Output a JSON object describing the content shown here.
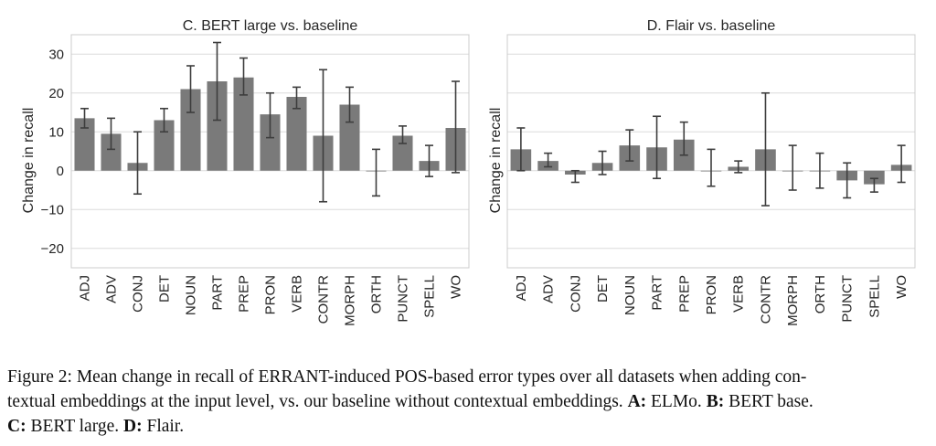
{
  "chart_data": [
    {
      "type": "bar",
      "title": "C. BERT large vs. baseline",
      "ylabel": "Change in recall",
      "ylim": [
        -25,
        35
      ],
      "yticks": [
        30,
        20,
        10,
        0,
        -10,
        -20
      ],
      "grid": true,
      "categories": [
        "ADJ",
        "ADV",
        "CONJ",
        "DET",
        "NOUN",
        "PART",
        "PREP",
        "PRON",
        "VERB",
        "CONTR",
        "MORPH",
        "ORTH",
        "PUNCT",
        "SPELL",
        "WO"
      ],
      "values": [
        13.5,
        9.5,
        2,
        13,
        21,
        23,
        24,
        14.5,
        19,
        9,
        17,
        0,
        9,
        2.5,
        11
      ],
      "error_low": [
        11,
        5.5,
        -6,
        10,
        15,
        13,
        19.5,
        8.5,
        16,
        -8,
        12.5,
        -6.5,
        7,
        -1.5,
        -0.5
      ],
      "error_high": [
        16,
        13.5,
        10,
        16,
        27,
        33,
        29,
        20,
        21.5,
        26,
        21.5,
        5.5,
        11.5,
        6.5,
        23
      ]
    },
    {
      "type": "bar",
      "title": "D. Flair vs. baseline",
      "ylabel": "Change in recall",
      "ylim": [
        -25,
        35
      ],
      "yticks": [
        30,
        20,
        10,
        0,
        -10,
        -20
      ],
      "grid": true,
      "categories": [
        "ADJ",
        "ADV",
        "CONJ",
        "DET",
        "NOUN",
        "PART",
        "PREP",
        "PRON",
        "VERB",
        "CONTR",
        "MORPH",
        "ORTH",
        "PUNCT",
        "SPELL",
        "WO"
      ],
      "values": [
        5.5,
        2.5,
        -1,
        2,
        6.5,
        6,
        8,
        0,
        1,
        5.5,
        0,
        0,
        -2.5,
        -3.5,
        1.5
      ],
      "error_low": [
        0,
        1,
        -3,
        -1,
        2.5,
        -2,
        4,
        -4,
        -0.5,
        -9,
        -5,
        -4.5,
        -7,
        -5.5,
        -3
      ],
      "error_high": [
        11,
        4.5,
        0,
        5,
        10.5,
        14,
        12.5,
        5.5,
        2.5,
        20,
        6.5,
        4.5,
        2,
        -2,
        6.5
      ]
    }
  ],
  "caption": {
    "line1": "Figure 2: Mean change in recall of ERRANT-induced POS-based error types over all datasets when adding con-",
    "line2a": "textual embeddings at the input level, vs. our baseline without contextual embeddings. ",
    "a_label": "A:",
    "a_text": " ELMo. ",
    "b_label": "B:",
    "b_text": " BERT base.",
    "c_label": "C:",
    "c_text": " BERT large. ",
    "d_label": "D:",
    "d_text": " Flair."
  },
  "colors": {
    "bar": "#7a7a7a",
    "error_bar": "#3d3d3d",
    "grid": "#dcdcdc",
    "frame": "#cccccc"
  }
}
